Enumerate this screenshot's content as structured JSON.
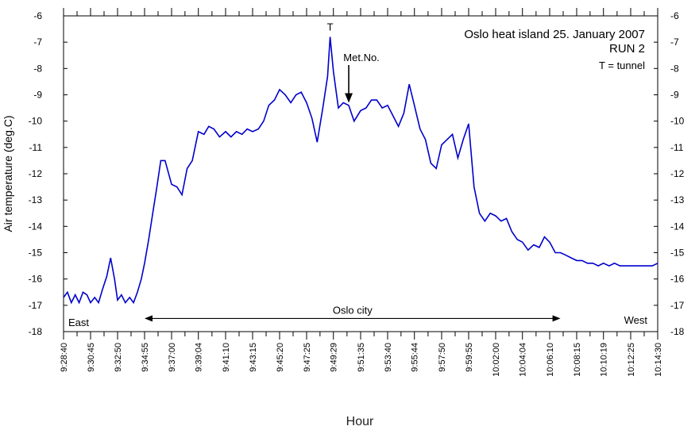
{
  "chart_data": {
    "type": "line",
    "title": "Oslo heat island 25. January 2007",
    "subtitle": "RUN 2",
    "note": "T = tunnel",
    "xlabel": "Hour",
    "ylabel": "Air temperature (deg.C)",
    "ylim": [
      -18,
      -6
    ],
    "yticks": [
      -6,
      -7,
      -8,
      -9,
      -10,
      -11,
      -12,
      -13,
      -14,
      -15,
      -16,
      -17,
      -18
    ],
    "xlim": [
      "9:28:40",
      "10:14:30"
    ],
    "xticks": [
      "9:28:40",
      "9:30:45",
      "9:32:50",
      "9:34:55",
      "9:37:00",
      "9:39:04",
      "9:41:10",
      "9:43:15",
      "9:45:20",
      "9:47:25",
      "9:49:29",
      "9:51:35",
      "9:53:40",
      "9:55:44",
      "9:57:50",
      "9:59:55",
      "10:02:00",
      "10:04:04",
      "10:06:10",
      "10:08:15",
      "10:10:19",
      "10:12:25",
      "10:14:30"
    ],
    "grid": false,
    "color": "#0000cc",
    "series": [
      {
        "x": [
          "9:28:40",
          "9:28:58",
          "9:29:16",
          "9:29:34",
          "9:29:52",
          "9:30:10",
          "9:30:28",
          "9:30:45",
          "9:31:04",
          "9:31:22",
          "9:31:40",
          "9:32:00",
          "9:32:18",
          "9:32:36",
          "9:32:50",
          "9:33:08",
          "9:33:26",
          "9:33:46",
          "9:34:04",
          "9:34:22",
          "9:34:40",
          "9:34:55",
          "9:35:14",
          "9:35:33",
          "9:35:52",
          "9:36:10",
          "9:36:30",
          "9:37:00",
          "9:37:25",
          "9:37:48",
          "9:38:12",
          "9:38:36",
          "9:39:04",
          "9:39:30",
          "9:39:52",
          "9:40:16",
          "9:40:42",
          "9:41:10",
          "9:41:35",
          "9:42:00",
          "9:42:26",
          "9:42:50",
          "9:43:15",
          "9:43:42",
          "9:44:06",
          "9:44:30",
          "9:44:56",
          "9:45:20",
          "9:45:46",
          "9:46:12",
          "9:46:36",
          "9:47:00",
          "9:47:25",
          "9:47:50",
          "9:48:14",
          "9:48:40",
          "9:49:02",
          "9:49:14",
          "9:49:29",
          "9:49:52",
          "9:50:15",
          "9:50:40",
          "9:51:05",
          "9:51:35",
          "9:52:00",
          "9:52:25",
          "9:52:50",
          "9:53:15",
          "9:53:40",
          "9:54:05",
          "9:54:30",
          "9:54:55",
          "9:55:20",
          "9:55:44",
          "9:56:10",
          "9:56:35",
          "9:57:00",
          "9:57:25",
          "9:57:50",
          "9:58:15",
          "9:58:40",
          "9:59:05",
          "9:59:30",
          "9:59:55",
          "10:00:20",
          "10:00:45",
          "10:01:10",
          "10:01:35",
          "10:02:00",
          "10:02:25",
          "10:02:50",
          "10:03:15",
          "10:03:40",
          "10:04:04",
          "10:04:30",
          "10:04:56",
          "10:05:22",
          "10:05:46",
          "10:06:10",
          "10:06:36",
          "10:07:00",
          "10:07:26",
          "10:07:50",
          "10:08:15",
          "10:08:40",
          "10:09:05",
          "10:09:30",
          "10:09:55",
          "10:10:19",
          "10:10:45",
          "10:11:10",
          "10:11:35",
          "10:12:00",
          "10:12:25",
          "10:12:50",
          "10:13:15",
          "10:13:40",
          "10:14:05",
          "10:14:30"
        ],
        "values": [
          -16.7,
          -16.5,
          -16.9,
          -16.6,
          -16.9,
          -16.5,
          -16.6,
          -16.9,
          -16.7,
          -16.9,
          -16.4,
          -15.9,
          -15.2,
          -16.0,
          -16.8,
          -16.6,
          -16.9,
          -16.7,
          -16.9,
          -16.5,
          -16.0,
          -15.4,
          -14.5,
          -13.5,
          -12.5,
          -11.5,
          -11.5,
          -12.4,
          -12.5,
          -12.8,
          -11.8,
          -11.5,
          -10.4,
          -10.5,
          -10.2,
          -10.3,
          -10.6,
          -10.4,
          -10.6,
          -10.4,
          -10.5,
          -10.3,
          -10.4,
          -10.3,
          -10.0,
          -9.4,
          -9.2,
          -8.8,
          -9.0,
          -9.3,
          -9.0,
          -8.9,
          -9.3,
          -9.9,
          -10.8,
          -9.5,
          -8.3,
          -6.8,
          -8.1,
          -9.5,
          -9.3,
          -9.4,
          -10.0,
          -9.6,
          -9.5,
          -9.2,
          -9.2,
          -9.5,
          -9.4,
          -9.8,
          -10.2,
          -9.7,
          -8.6,
          -9.4,
          -10.3,
          -10.7,
          -11.6,
          -11.8,
          -10.9,
          -10.7,
          -10.5,
          -11.4,
          -10.7,
          -10.1,
          -12.5,
          -13.5,
          -13.8,
          -13.5,
          -13.6,
          -13.8,
          -13.7,
          -14.2,
          -14.5,
          -14.6,
          -14.9,
          -14.7,
          -14.8,
          -14.4,
          -14.6,
          -15.0,
          -15.0,
          -15.1,
          -15.2,
          -15.3,
          -15.3,
          -15.4,
          -15.4,
          -15.5,
          -15.4,
          -15.5,
          -15.4,
          -15.5,
          -15.5,
          -15.5,
          -15.5,
          -15.5,
          -15.5,
          -15.5,
          -15.4
        ]
      }
    ],
    "annotations": {
      "tunnel_marker": {
        "label": "T",
        "x": "9:49:14",
        "y": -6.8
      },
      "met_no": {
        "label": "Met.No.",
        "x": "9:50:40",
        "y": -9.3
      },
      "city_span": {
        "label": "Oslo city",
        "x_from": "9:34:55",
        "x_to": "10:07:00",
        "y": -17.5
      },
      "east": {
        "label": "East"
      },
      "west": {
        "label": "West"
      }
    }
  }
}
